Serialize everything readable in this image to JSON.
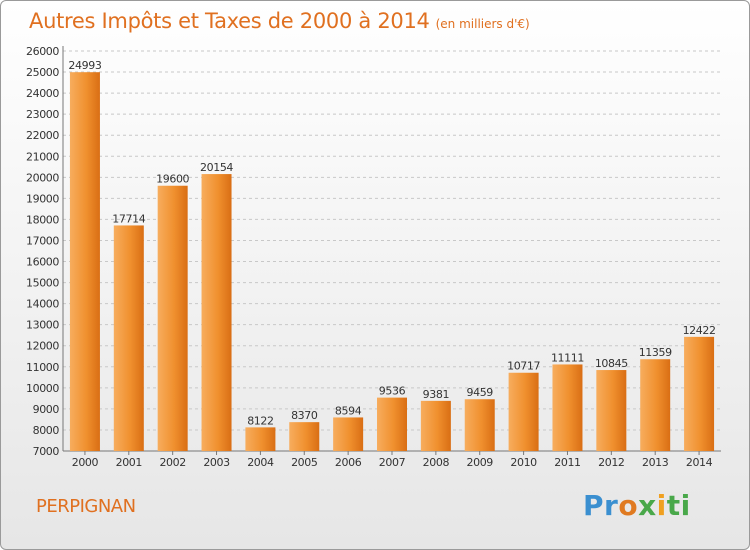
{
  "title": "Autres Impôts et Taxes de 2000 à 2014",
  "subtitle": "(en milliers d'€)",
  "city": "PERPIGNAN",
  "logo": {
    "letters": [
      "Pr",
      "o",
      "x",
      "i",
      "ti"
    ]
  },
  "colors": {
    "bar": "#f0902e",
    "bar_light": "#f7ad5e",
    "bar_dark": "#d96e14",
    "accent": "#e07020",
    "grid": "#c8c8c8"
  },
  "chart_data": {
    "type": "bar",
    "categories": [
      "2000",
      "2001",
      "2002",
      "2003",
      "2004",
      "2005",
      "2006",
      "2007",
      "2008",
      "2009",
      "2010",
      "2011",
      "2012",
      "2013",
      "2014"
    ],
    "values": [
      24993,
      17714,
      19600,
      20154,
      8122,
      8370,
      8594,
      9536,
      9381,
      9459,
      10717,
      11111,
      10845,
      11359,
      12422
    ],
    "ylim": [
      7000,
      26000
    ],
    "yticks": [
      7000,
      8000,
      9000,
      10000,
      11000,
      12000,
      13000,
      14000,
      15000,
      16000,
      17000,
      18000,
      19000,
      20000,
      21000,
      22000,
      23000,
      24000,
      25000,
      26000
    ],
    "grid": true
  }
}
